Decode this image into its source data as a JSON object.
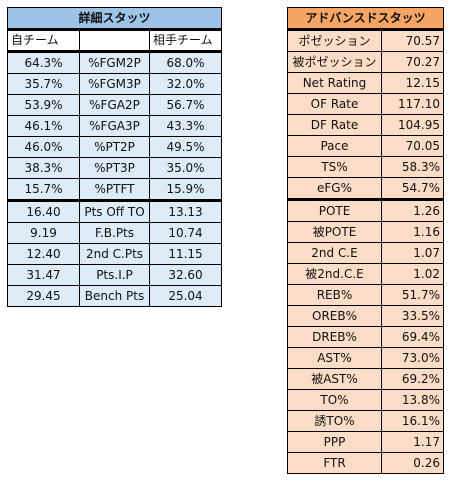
{
  "left_table": {
    "title": "詳細スタッツ",
    "col_self": "自チーム",
    "col_mid": "",
    "col_opp": "相手チーム",
    "group1": [
      {
        "self": "64.3%",
        "label": "%FGM2P",
        "opp": "68.0%"
      },
      {
        "self": "35.7%",
        "label": "%FGM3P",
        "opp": "32.0%"
      },
      {
        "self": "53.9%",
        "label": "%FGA2P",
        "opp": "56.7%"
      },
      {
        "self": "46.1%",
        "label": "%FGA3P",
        "opp": "43.3%"
      },
      {
        "self": "46.0%",
        "label": "%PT2P",
        "opp": "49.5%"
      },
      {
        "self": "38.3%",
        "label": "%PT3P",
        "opp": "35.0%"
      },
      {
        "self": "15.7%",
        "label": "%PTFT",
        "opp": "15.9%"
      }
    ],
    "group2": [
      {
        "self": "16.40",
        "label": "Pts Off TO",
        "opp": "13.13"
      },
      {
        "self": "9.19",
        "label": "F.B.Pts",
        "opp": "10.74"
      },
      {
        "self": "12.40",
        "label": "2nd C.Pts",
        "opp": "11.15"
      },
      {
        "self": "31.47",
        "label": "Pts.I.P",
        "opp": "32.60"
      },
      {
        "self": "29.45",
        "label": "Bench Pts",
        "opp": "25.04"
      }
    ]
  },
  "right_table": {
    "title": "アドバンスドスタッツ",
    "group1": [
      {
        "label": "ポゼッション",
        "value": "70.57"
      },
      {
        "label": "被ポゼッション",
        "value": "70.27"
      },
      {
        "label": "Net Rating",
        "value": "12.15"
      },
      {
        "label": "OF Rate",
        "value": "117.10"
      },
      {
        "label": "DF Rate",
        "value": "104.95"
      },
      {
        "label": "Pace",
        "value": "70.05"
      },
      {
        "label": "TS%",
        "value": "58.3%"
      },
      {
        "label": "eFG%",
        "value": "54.7%"
      }
    ],
    "group2": [
      {
        "label": "POTE",
        "value": "1.26"
      },
      {
        "label": "被POTE",
        "value": "1.16"
      },
      {
        "label": "2nd C.E",
        "value": "1.07"
      },
      {
        "label": "被2nd.C.E",
        "value": "1.02"
      },
      {
        "label": "REB%",
        "value": "51.7%"
      },
      {
        "label": "OREB%",
        "value": "33.5%"
      },
      {
        "label": "DREB%",
        "value": "69.4%"
      },
      {
        "label": "AST%",
        "value": "73.0%"
      },
      {
        "label": "被AST%",
        "value": "69.2%"
      },
      {
        "label": "TO%",
        "value": "13.8%"
      },
      {
        "label": "誘TO%",
        "value": "16.1%"
      },
      {
        "label": "PPP",
        "value": "1.17"
      },
      {
        "label": "FTR",
        "value": "0.26"
      }
    ]
  },
  "colors": {
    "header_blue": "#9dc3e6",
    "cell_blue": "#ddebf7",
    "header_orange": "#f4a465",
    "cell_orange": "#fbdcc6"
  }
}
